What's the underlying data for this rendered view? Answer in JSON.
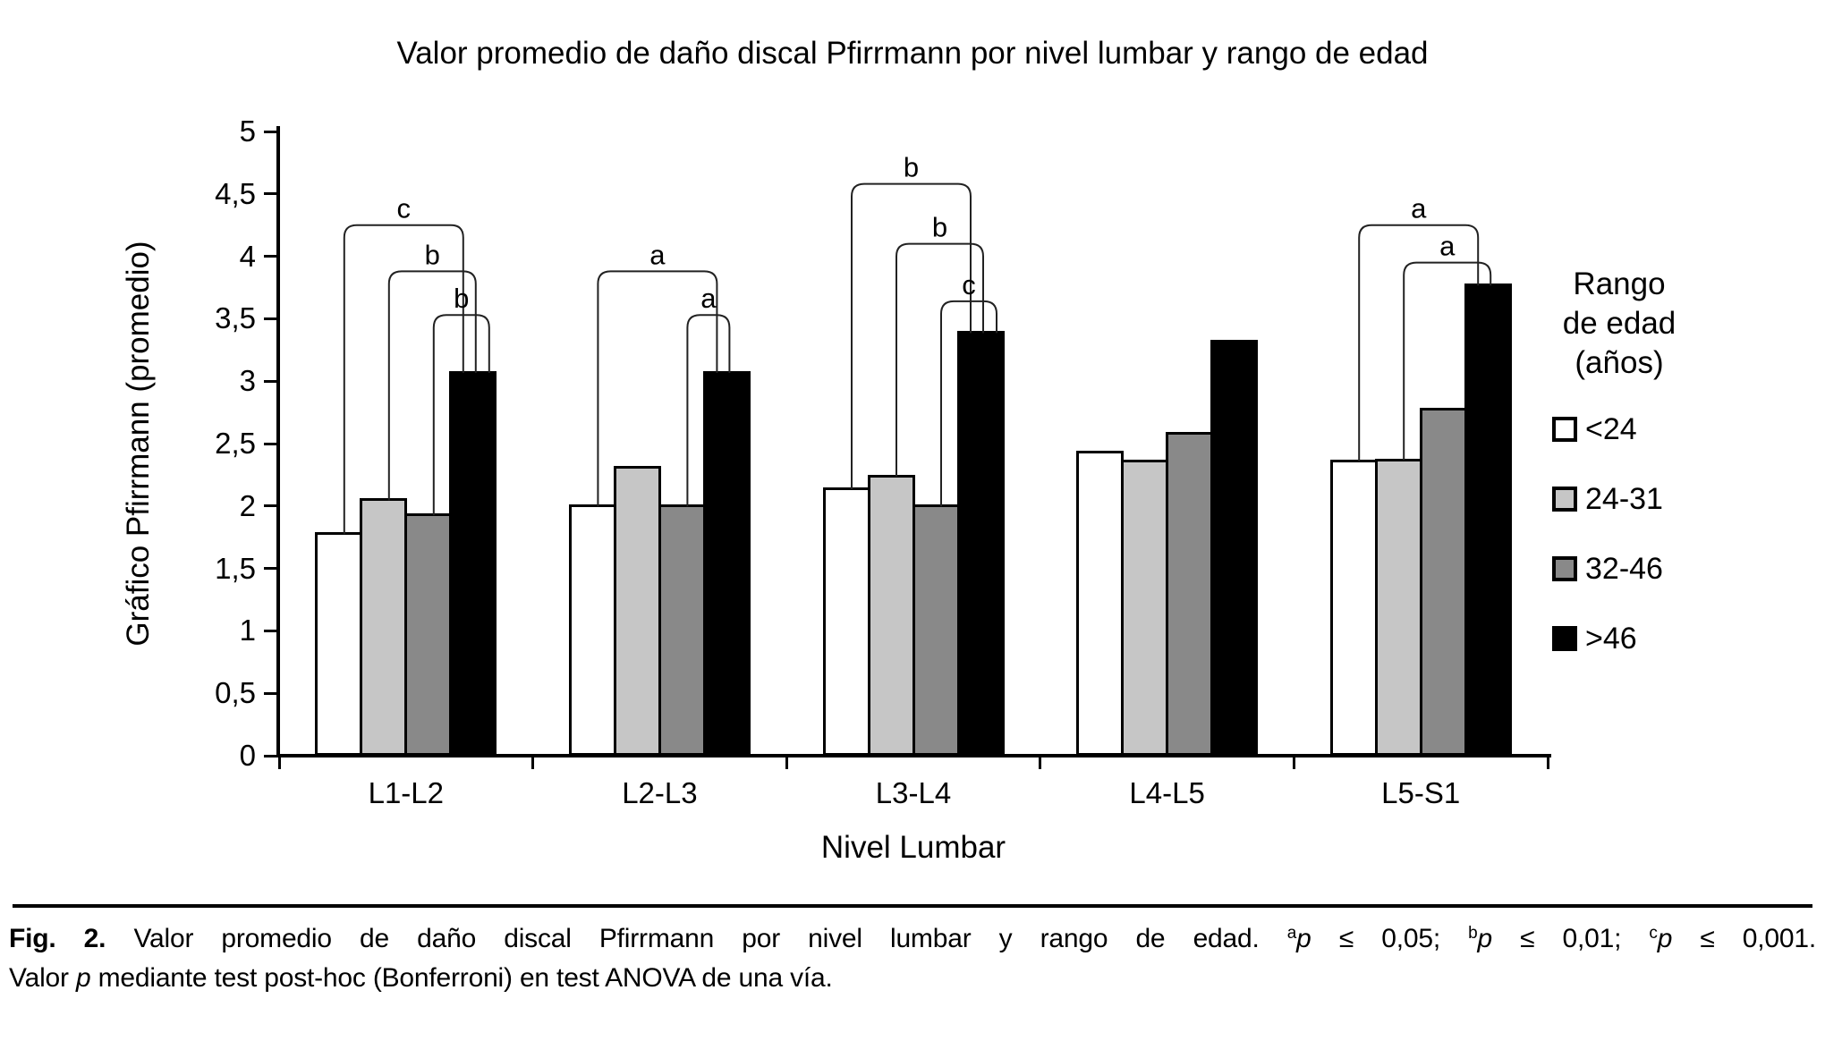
{
  "title": "Valor promedio de daño discal Pfirrmann por nivel lumbar y rango de edad",
  "y_axis": {
    "label": "Gráfico Pfirrmann (promedio)",
    "tick_labels_top_to_bottom": [
      "5",
      "4,5",
      "4",
      "3,5",
      "3",
      "2,5",
      "2",
      "1,5",
      "1",
      "0,5",
      "0"
    ],
    "min": 0,
    "max": 5,
    "step": 0.5
  },
  "x_axis": {
    "label": "Nivel Lumbar",
    "categories": [
      "L1-L2",
      "L2-L3",
      "L3-L4",
      "L4-L5",
      "L5-S1"
    ]
  },
  "legend": {
    "title_lines": [
      "Rango",
      "de edad",
      "(años)"
    ],
    "items": [
      {
        "label": "<24",
        "color": "#ffffff"
      },
      {
        "label": "24-31",
        "color": "#c6c6c6"
      },
      {
        "label": "32-46",
        "color": "#898989"
      },
      {
        "label": ">46",
        "color": "#000000"
      }
    ]
  },
  "chart_data": {
    "type": "bar",
    "title": "Valor promedio de daño discal Pfirrmann por nivel lumbar y rango de edad",
    "xlabel": "Nivel Lumbar",
    "ylabel": "Gráfico Pfirrmann (promedio)",
    "ylim": [
      0,
      5
    ],
    "grid": false,
    "legend_position": "right",
    "categories": [
      "L1-L2",
      "L2-L3",
      "L3-L4",
      "L4-L5",
      "L5-S1"
    ],
    "series": [
      {
        "name": "<24",
        "color": "#ffffff",
        "values": [
          1.79,
          2.01,
          2.15,
          2.44,
          2.37
        ]
      },
      {
        "name": "24-31",
        "color": "#c6c6c6",
        "values": [
          2.06,
          2.32,
          2.25,
          2.37,
          2.38
        ]
      },
      {
        "name": "32-46",
        "color": "#898989",
        "values": [
          1.94,
          2.01,
          2.01,
          2.59,
          2.79
        ]
      },
      {
        "name": ">46",
        "color": "#000000",
        "values": [
          3.08,
          3.08,
          3.4,
          3.33,
          3.78
        ]
      }
    ],
    "significance_brackets": [
      {
        "category": "L1-L2",
        "from_series": "<24",
        "to_series": ">46",
        "label": "c",
        "height": 4.25
      },
      {
        "category": "L1-L2",
        "from_series": "24-31",
        "to_series": ">46",
        "label": "b",
        "height": 3.88
      },
      {
        "category": "L1-L2",
        "from_series": "32-46",
        "to_series": ">46",
        "label": "b",
        "height": 3.53
      },
      {
        "category": "L2-L3",
        "from_series": "<24",
        "to_series": ">46",
        "label": "a",
        "height": 3.88
      },
      {
        "category": "L2-L3",
        "from_series": "32-46",
        "to_series": ">46",
        "label": "a",
        "height": 3.53
      },
      {
        "category": "L3-L4",
        "from_series": "<24",
        "to_series": ">46",
        "label": "b",
        "height": 4.58
      },
      {
        "category": "L3-L4",
        "from_series": "24-31",
        "to_series": ">46",
        "label": "b",
        "height": 4.1
      },
      {
        "category": "L3-L4",
        "from_series": "32-46",
        "to_series": ">46",
        "label": "c",
        "height": 3.64
      },
      {
        "category": "L5-S1",
        "from_series": "<24",
        "to_series": ">46",
        "label": "a",
        "height": 4.25
      },
      {
        "category": "L5-S1",
        "from_series": "24-31",
        "to_series": ">46",
        "label": "a",
        "height": 3.95
      }
    ]
  },
  "caption": {
    "line1_segments": [
      {
        "t": "Fig. 2.",
        "style": "bold"
      },
      {
        "t": " Valor promedio de daño discal Pfirrmann por nivel lumbar y rango de edad. ",
        "style": "normal"
      },
      {
        "t": "a",
        "style": "sup"
      },
      {
        "t": "p",
        "style": "italic"
      },
      {
        "t": " ≤ 0,05; ",
        "style": "normal"
      },
      {
        "t": "b",
        "style": "sup"
      },
      {
        "t": "p",
        "style": "italic"
      },
      {
        "t": " ≤ 0,01; ",
        "style": "normal"
      },
      {
        "t": "c",
        "style": "sup"
      },
      {
        "t": "p",
        "style": "italic"
      },
      {
        "t": " ≤ 0,001.",
        "style": "normal"
      }
    ],
    "line2_segments": [
      {
        "t": "Valor ",
        "style": "normal"
      },
      {
        "t": "p",
        "style": "italic"
      },
      {
        "t": " mediante test post-hoc (Bonferroni) en test ANOVA de una vía.",
        "style": "normal"
      }
    ]
  }
}
